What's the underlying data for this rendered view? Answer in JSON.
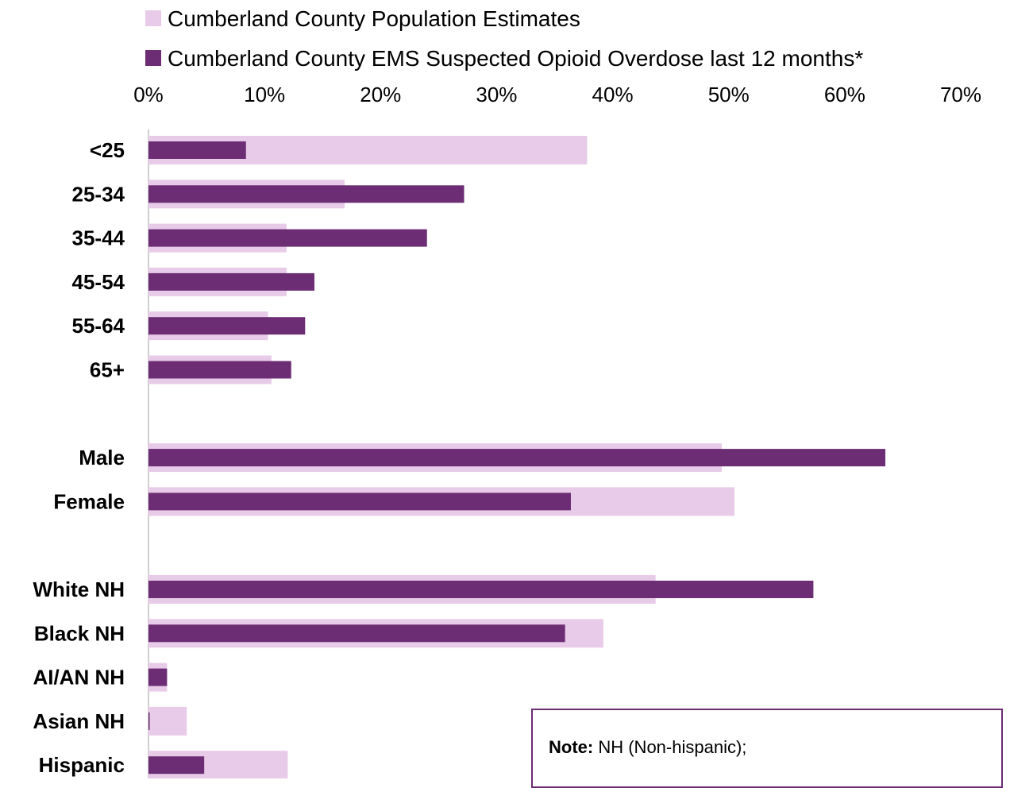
{
  "note": {
    "label": "Note:",
    "text": "NH (Non-hispanic);"
  },
  "chart_data": {
    "type": "bar",
    "orientation": "horizontal",
    "title": "",
    "xlabel": "",
    "ylabel": "",
    "xlim": [
      0,
      70
    ],
    "x_ticks": [
      "0%",
      "10%",
      "20%",
      "30%",
      "40%",
      "50%",
      "60%",
      "70%"
    ],
    "grid": false,
    "legend_position": "top",
    "groups": [
      [
        "<25",
        "25-34",
        "35-44",
        "45-54",
        "55-64",
        "65+"
      ],
      [
        "Male",
        "Female"
      ],
      [
        "White NH",
        "Black NH",
        "AI/AN NH",
        "Asian NH",
        "Hispanic"
      ]
    ],
    "categories": [
      "<25",
      "25-34",
      "35-44",
      "45-54",
      "55-64",
      "65+",
      "Male",
      "Female",
      "White NH",
      "Black NH",
      "AI/AN NH",
      "Asian NH",
      "Hispanic"
    ],
    "series": [
      {
        "name": "Cumberland County Population Estimates",
        "color": "#e8cbe8",
        "values": [
          37.8,
          16.9,
          11.9,
          11.9,
          10.3,
          10.6,
          49.4,
          50.5,
          43.7,
          39.2,
          1.6,
          3.3,
          12.0
        ]
      },
      {
        "name": "Cumberland County EMS Suspected Opioid Overdose last 12 months*",
        "color": "#6c2d74",
        "values": [
          8.4,
          27.2,
          24.0,
          14.3,
          13.5,
          12.3,
          63.5,
          36.4,
          57.3,
          35.9,
          1.6,
          0.1,
          4.8
        ]
      }
    ]
  }
}
